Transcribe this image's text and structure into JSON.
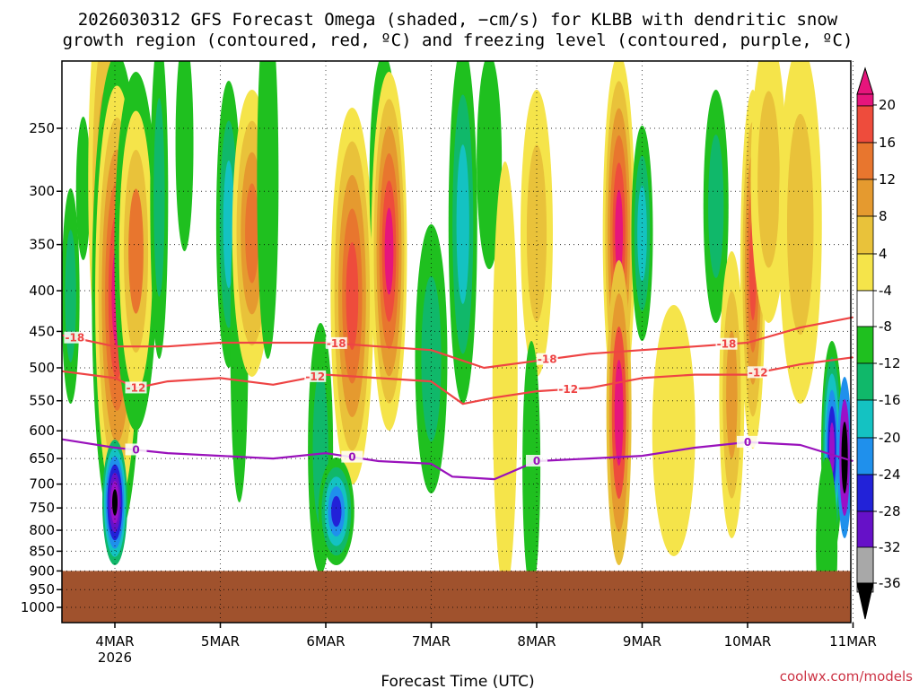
{
  "title": {
    "line1": "2026030312 GFS Forecast Omega (shaded, −cm/s) for KLBB with dendritic snow",
    "line2": "growth region (contoured, red, ºC) and freezing level (contoured, purple, ºC)"
  },
  "credit": "coolwx.com/models",
  "chart_data": {
    "type": "heatmap",
    "xlabel": "Forecast Time (UTC)",
    "ylabel": "",
    "x_ticks": [
      {
        "label": "4MAR",
        "sub": "2026",
        "day": 0
      },
      {
        "label": "5MAR",
        "sub": "",
        "day": 1
      },
      {
        "label": "6MAR",
        "sub": "",
        "day": 2
      },
      {
        "label": "7MAR",
        "sub": "",
        "day": 3
      },
      {
        "label": "8MAR",
        "sub": "",
        "day": 4
      },
      {
        "label": "9MAR",
        "sub": "",
        "day": 5
      },
      {
        "label": "10MAR",
        "sub": "",
        "day": 6
      },
      {
        "label": "11MAR",
        "sub": "",
        "day": 7
      }
    ],
    "xlim_days": [
      -0.5,
      7.0
    ],
    "y_ticks": [
      250,
      300,
      350,
      400,
      450,
      500,
      550,
      600,
      650,
      700,
      750,
      800,
      850,
      900,
      950,
      1000
    ],
    "y_axis": "pressure (hPa), inverted",
    "ground_level_hpa": 900,
    "colorbar": {
      "labels": [
        "20",
        "16",
        "12",
        "8",
        "4",
        "-4",
        "-8",
        "-12",
        "-16",
        "-20",
        "-24",
        "-28",
        "-32",
        "-36"
      ],
      "colors": {
        "pos": [
          "#f5e44a",
          "#e9c23a",
          "#e59a2f",
          "#e8762e",
          "#ee4c3c",
          "#e6157c"
        ],
        "neg": [
          "#1fc01f",
          "#10b86a",
          "#14c2c2",
          "#1f90ec",
          "#2222d8",
          "#6611c8",
          "#9a10c8",
          "#a8a8a8",
          "#000000"
        ],
        "ground": "#a0522d",
        "dgz": "#ee4444",
        "freezing": "#9911bb"
      }
    },
    "contours": [
      {
        "name": "-18",
        "color_key": "dgz",
        "points": [
          [
            -0.5,
            455
          ],
          [
            0,
            470
          ],
          [
            0.5,
            470
          ],
          [
            1,
            465
          ],
          [
            1.5,
            465
          ],
          [
            2,
            465
          ],
          [
            2.5,
            470
          ],
          [
            3,
            475
          ],
          [
            3.5,
            500
          ],
          [
            4,
            490
          ],
          [
            4.5,
            480
          ],
          [
            5,
            475
          ],
          [
            5.5,
            470
          ],
          [
            6,
            465
          ],
          [
            6.5,
            445
          ],
          [
            7,
            432
          ]
        ],
        "labels": [
          [
            -0.38,
            -18
          ],
          [
            2.1,
            -18
          ],
          [
            4.1,
            -18
          ],
          [
            5.8,
            -18
          ]
        ]
      },
      {
        "name": "-12",
        "color_key": "dgz",
        "points": [
          [
            -0.5,
            505
          ],
          [
            0,
            515
          ],
          [
            0.2,
            530
          ],
          [
            0.5,
            520
          ],
          [
            1,
            515
          ],
          [
            1.5,
            525
          ],
          [
            2,
            510
          ],
          [
            2.5,
            515
          ],
          [
            3,
            520
          ],
          [
            3.3,
            555
          ],
          [
            3.6,
            545
          ],
          [
            4,
            535
          ],
          [
            4.5,
            530
          ],
          [
            5,
            515
          ],
          [
            5.5,
            510
          ],
          [
            6,
            510
          ],
          [
            6.5,
            495
          ],
          [
            7,
            485
          ]
        ],
        "labels": [
          [
            0.2,
            -12
          ],
          [
            1.9,
            -12
          ],
          [
            4.3,
            -12
          ],
          [
            6.1,
            -12
          ]
        ]
      },
      {
        "name": "0",
        "color_key": "freezing",
        "points": [
          [
            -0.5,
            615
          ],
          [
            0,
            630
          ],
          [
            0.5,
            640
          ],
          [
            1,
            645
          ],
          [
            1.5,
            650
          ],
          [
            2,
            640
          ],
          [
            2.5,
            655
          ],
          [
            3,
            660
          ],
          [
            3.2,
            685
          ],
          [
            3.6,
            690
          ],
          [
            4,
            655
          ],
          [
            4.5,
            650
          ],
          [
            5,
            645
          ],
          [
            5.5,
            630
          ],
          [
            6,
            620
          ],
          [
            6.5,
            625
          ],
          [
            7,
            655
          ]
        ],
        "labels": [
          [
            0.2,
            0
          ],
          [
            2.25,
            0
          ],
          [
            4,
            0
          ],
          [
            6,
            0
          ]
        ]
      }
    ]
  }
}
